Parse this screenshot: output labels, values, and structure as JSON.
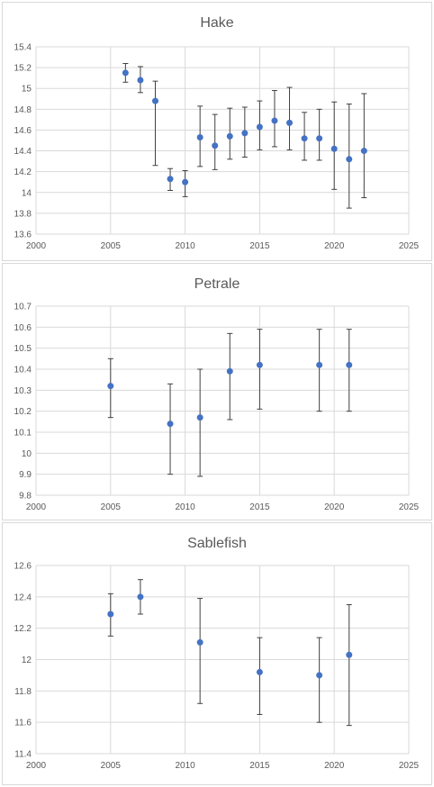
{
  "colors": {
    "marker": "#4472c4",
    "gridline": "#d9d9d9",
    "errorbar": "#404040",
    "text": "#595959"
  },
  "chart_data": [
    {
      "type": "scatter",
      "title": "Hake",
      "xlim": [
        2000,
        2025
      ],
      "ylim": [
        13.6,
        15.4
      ],
      "xticks": [
        2000,
        2005,
        2010,
        2015,
        2020,
        2025
      ],
      "yticks": [
        "13.6",
        "13.8",
        "14",
        "14.2",
        "14.4",
        "14.6",
        "14.8",
        "15",
        "15.2",
        "15.4"
      ],
      "grid": true,
      "points": [
        {
          "x": 2006,
          "y": 15.15,
          "low": 15.06,
          "high": 15.24
        },
        {
          "x": 2007,
          "y": 15.08,
          "low": 14.96,
          "high": 15.21
        },
        {
          "x": 2008,
          "y": 14.88,
          "low": 14.26,
          "high": 15.07
        },
        {
          "x": 2009,
          "y": 14.13,
          "low": 14.02,
          "high": 14.23
        },
        {
          "x": 2010,
          "y": 14.1,
          "low": 13.96,
          "high": 14.21
        },
        {
          "x": 2011,
          "y": 14.53,
          "low": 14.25,
          "high": 14.83
        },
        {
          "x": 2012,
          "y": 14.45,
          "low": 14.22,
          "high": 14.75
        },
        {
          "x": 2013,
          "y": 14.54,
          "low": 14.32,
          "high": 14.81
        },
        {
          "x": 2014,
          "y": 14.57,
          "low": 14.34,
          "high": 14.82
        },
        {
          "x": 2015,
          "y": 14.63,
          "low": 14.41,
          "high": 14.88
        },
        {
          "x": 2016,
          "y": 14.69,
          "low": 14.44,
          "high": 14.98
        },
        {
          "x": 2017,
          "y": 14.67,
          "low": 14.41,
          "high": 15.01
        },
        {
          "x": 2018,
          "y": 14.52,
          "low": 14.31,
          "high": 14.77
        },
        {
          "x": 2019,
          "y": 14.52,
          "low": 14.31,
          "high": 14.8
        },
        {
          "x": 2020,
          "y": 14.42,
          "low": 14.03,
          "high": 14.87
        },
        {
          "x": 2021,
          "y": 14.32,
          "low": 13.85,
          "high": 14.85
        },
        {
          "x": 2022,
          "y": 14.4,
          "low": 13.95,
          "high": 14.95
        }
      ]
    },
    {
      "type": "scatter",
      "title": "Petrale",
      "xlim": [
        2000,
        2025
      ],
      "ylim": [
        9.8,
        10.7
      ],
      "xticks": [
        2000,
        2005,
        2010,
        2015,
        2020,
        2025
      ],
      "yticks": [
        "9.8",
        "9.9",
        "10",
        "10.1",
        "10.2",
        "10.3",
        "10.4",
        "10.5",
        "10.6",
        "10.7"
      ],
      "grid": true,
      "points": [
        {
          "x": 2005,
          "y": 10.32,
          "low": 10.17,
          "high": 10.45
        },
        {
          "x": 2009,
          "y": 10.14,
          "low": 9.9,
          "high": 10.33
        },
        {
          "x": 2011,
          "y": 10.17,
          "low": 9.89,
          "high": 10.4
        },
        {
          "x": 2013,
          "y": 10.39,
          "low": 10.16,
          "high": 10.57
        },
        {
          "x": 2015,
          "y": 10.42,
          "low": 10.21,
          "high": 10.59
        },
        {
          "x": 2019,
          "y": 10.42,
          "low": 10.2,
          "high": 10.59
        },
        {
          "x": 2021,
          "y": 10.42,
          "low": 10.2,
          "high": 10.59
        }
      ]
    },
    {
      "type": "scatter",
      "title": "Sablefish",
      "xlim": [
        2000,
        2025
      ],
      "ylim": [
        11.4,
        12.6
      ],
      "xticks": [
        2000,
        2005,
        2010,
        2015,
        2020,
        2025
      ],
      "yticks": [
        "11.4",
        "11.6",
        "11.8",
        "12",
        "12.2",
        "12.4",
        "12.6"
      ],
      "grid": true,
      "points": [
        {
          "x": 2005,
          "y": 12.29,
          "low": 12.15,
          "high": 12.42
        },
        {
          "x": 2007,
          "y": 12.4,
          "low": 12.29,
          "high": 12.51
        },
        {
          "x": 2011,
          "y": 12.11,
          "low": 11.72,
          "high": 12.39
        },
        {
          "x": 2015,
          "y": 11.92,
          "low": 11.65,
          "high": 12.14
        },
        {
          "x": 2019,
          "y": 11.9,
          "low": 11.6,
          "high": 12.14
        },
        {
          "x": 2021,
          "y": 12.03,
          "low": 11.58,
          "high": 12.35
        }
      ]
    }
  ]
}
